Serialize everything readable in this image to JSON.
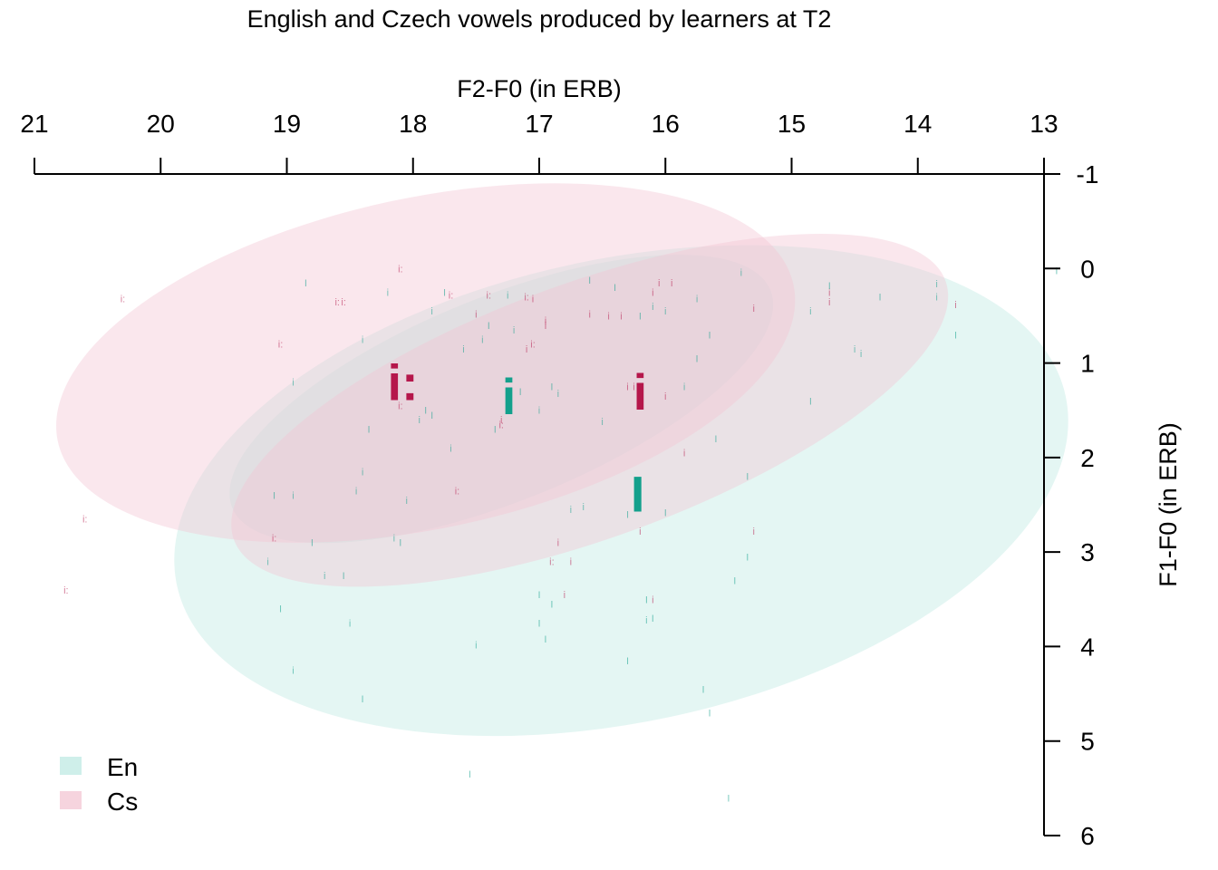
{
  "chart_data": {
    "type": "scatter",
    "title": "English and Czech vowels produced by learners at T2",
    "xlabel": "F2-F0 (in ERB)",
    "ylabel": "F1-F0 (in ERB)",
    "xlim": [
      21,
      13
    ],
    "ylim": [
      -1,
      6
    ],
    "x_ticks": [
      "21",
      "20",
      "19",
      "18",
      "17",
      "16",
      "15",
      "14",
      "13"
    ],
    "y_ticks": [
      "-1",
      "0",
      "1",
      "2",
      "3",
      "4",
      "5",
      "6"
    ],
    "x_axis_position": "top",
    "y_axis_position": "right",
    "x_reversed": true,
    "y_reversed": true,
    "grid": false,
    "legend_position": "bottom-left",
    "colors": {
      "En": "#13a08c",
      "Cs": "#b5174b",
      "En_fill": "#bfe9e3",
      "Cs_fill": "#f3c6d3",
      "overlap_fill": "#c8c6c8"
    },
    "legend": [
      {
        "name": "En",
        "color": "#bfe9e3"
      },
      {
        "name": "Cs",
        "color": "#f3c6d3"
      }
    ],
    "ellipses": [
      {
        "series": "En",
        "vowel": "I",
        "cx": 16.35,
        "cy": 2.35,
        "rx": 3.6,
        "ry": 2.45,
        "angle_deg": -12
      },
      {
        "series": "En",
        "vowel": "i",
        "cx": 17.3,
        "cy": 1.38,
        "rx": 2.3,
        "ry": 1.08,
        "angle_deg": -22
      },
      {
        "series": "Cs",
        "vowel": "i:",
        "cx": 17.9,
        "cy": 1.0,
        "rx": 2.98,
        "ry": 1.75,
        "angle_deg": -12
      },
      {
        "series": "Cs",
        "vowel": "i",
        "cx": 16.6,
        "cy": 1.5,
        "rx": 3.0,
        "ry": 1.35,
        "angle_deg": -20
      }
    ],
    "centroids": [
      {
        "series": "Cs",
        "label": "i:",
        "x": 18.08,
        "y": 1.2
      },
      {
        "series": "En",
        "label": "i",
        "x": 17.24,
        "y": 1.35
      },
      {
        "series": "Cs",
        "label": "i",
        "x": 16.2,
        "y": 1.3
      },
      {
        "series": "En",
        "label": "I",
        "x": 16.22,
        "y": 2.38
      }
    ],
    "points": [
      {
        "series": "En",
        "label": "I",
        "x": 12.9,
        "y": 0.02
      },
      {
        "series": "En",
        "label": "i",
        "x": 13.85,
        "y": 0.16
      },
      {
        "series": "En",
        "label": "i",
        "x": 13.85,
        "y": 0.3
      },
      {
        "series": "En",
        "label": "I",
        "x": 13.7,
        "y": 0.7
      },
      {
        "series": "Cs",
        "label": "i",
        "x": 13.7,
        "y": 0.38
      },
      {
        "series": "En",
        "label": "I",
        "x": 14.3,
        "y": 0.3
      },
      {
        "series": "En",
        "label": "i",
        "x": 14.45,
        "y": 0.9
      },
      {
        "series": "En",
        "label": "i",
        "x": 14.5,
        "y": 0.85
      },
      {
        "series": "Cs",
        "label": "i",
        "x": 14.7,
        "y": 0.25
      },
      {
        "series": "Cs",
        "label": "i",
        "x": 14.7,
        "y": 0.35
      },
      {
        "series": "En",
        "label": "I",
        "x": 14.7,
        "y": 0.18
      },
      {
        "series": "En",
        "label": "I",
        "x": 14.85,
        "y": 1.4
      },
      {
        "series": "En",
        "label": "i",
        "x": 14.85,
        "y": 0.45
      },
      {
        "series": "Cs",
        "label": "i",
        "x": 15.3,
        "y": 0.42
      },
      {
        "series": "En",
        "label": "i",
        "x": 15.4,
        "y": 0.04
      },
      {
        "series": "En",
        "label": "I",
        "x": 15.35,
        "y": 2.2
      },
      {
        "series": "En",
        "label": "I",
        "x": 15.35,
        "y": 3.05
      },
      {
        "series": "En",
        "label": "I",
        "x": 15.45,
        "y": 3.3
      },
      {
        "series": "Cs",
        "label": "i",
        "x": 15.3,
        "y": 2.78
      },
      {
        "series": "En",
        "label": "I",
        "x": 15.6,
        "y": 1.8
      },
      {
        "series": "En",
        "label": "I",
        "x": 15.65,
        "y": 0.7
      },
      {
        "series": "En",
        "label": "I",
        "x": 15.75,
        "y": 0.95
      },
      {
        "series": "En",
        "label": "i",
        "x": 15.75,
        "y": 0.32
      },
      {
        "series": "En",
        "label": "i",
        "x": 15.85,
        "y": 1.25
      },
      {
        "series": "Cs",
        "label": "i",
        "x": 15.85,
        "y": 1.95
      },
      {
        "series": "Cs",
        "label": "i",
        "x": 15.95,
        "y": 0.15
      },
      {
        "series": "Cs",
        "label": "i",
        "x": 16.0,
        "y": 1.35
      },
      {
        "series": "En",
        "label": "i",
        "x": 16.0,
        "y": 0.45
      },
      {
        "series": "En",
        "label": "I",
        "x": 16.0,
        "y": 2.58
      },
      {
        "series": "En",
        "label": "i",
        "x": 16.1,
        "y": 0.4
      },
      {
        "series": "Cs",
        "label": "i",
        "x": 16.05,
        "y": 0.15
      },
      {
        "series": "Cs",
        "label": "i",
        "x": 16.1,
        "y": 0.25
      },
      {
        "series": "En",
        "label": "I",
        "x": 16.2,
        "y": 0.5
      },
      {
        "series": "En",
        "label": "I",
        "x": 16.4,
        "y": 0.2
      },
      {
        "series": "En",
        "label": "I",
        "x": 16.6,
        "y": 0.12
      },
      {
        "series": "Cs",
        "label": "i",
        "x": 16.6,
        "y": 0.48
      },
      {
        "series": "Cs",
        "label": "i",
        "x": 16.45,
        "y": 0.5
      },
      {
        "series": "Cs",
        "label": "i",
        "x": 16.35,
        "y": 0.5
      },
      {
        "series": "En",
        "label": "i",
        "x": 16.5,
        "y": 1.62
      },
      {
        "series": "En",
        "label": "i",
        "x": 16.85,
        "y": 1.32
      },
      {
        "series": "En",
        "label": "I",
        "x": 16.9,
        "y": 1.25
      },
      {
        "series": "En",
        "label": "i",
        "x": 16.65,
        "y": 2.52
      },
      {
        "series": "En",
        "label": "i",
        "x": 16.75,
        "y": 2.55
      },
      {
        "series": "Cs",
        "label": "i",
        "x": 16.25,
        "y": 1.25
      },
      {
        "series": "Cs",
        "label": "i",
        "x": 16.3,
        "y": 1.25
      },
      {
        "series": "Cs",
        "label": "i",
        "x": 16.2,
        "y": 2.78
      },
      {
        "series": "En",
        "label": "I",
        "x": 16.3,
        "y": 2.6
      },
      {
        "series": "Cs",
        "label": "i",
        "x": 16.95,
        "y": 0.55
      },
      {
        "series": "Cs",
        "label": "i",
        "x": 16.95,
        "y": 0.6
      },
      {
        "series": "Cs",
        "label": "i",
        "x": 17.05,
        "y": 0.32
      },
      {
        "series": "Cs",
        "label": "i:",
        "x": 17.1,
        "y": 0.3
      },
      {
        "series": "Cs",
        "label": "i:",
        "x": 17.05,
        "y": 0.8
      },
      {
        "series": "Cs",
        "label": "i",
        "x": 17.1,
        "y": 0.85
      },
      {
        "series": "En",
        "label": "i",
        "x": 17.2,
        "y": 0.65
      },
      {
        "series": "En",
        "label": "i",
        "x": 17.25,
        "y": 0.28
      },
      {
        "series": "En",
        "label": "I",
        "x": 17.4,
        "y": 0.6
      },
      {
        "series": "En",
        "label": "i",
        "x": 17.45,
        "y": 0.75
      },
      {
        "series": "Cs",
        "label": "i:",
        "x": 17.4,
        "y": 0.28
      },
      {
        "series": "Cs",
        "label": "i",
        "x": 17.5,
        "y": 0.48
      },
      {
        "series": "Cs",
        "label": "i:",
        "x": 17.7,
        "y": 0.28
      },
      {
        "series": "Cs",
        "label": "i",
        "x": 17.3,
        "y": 1.6
      },
      {
        "series": "Cs",
        "label": "i:",
        "x": 17.3,
        "y": 1.65
      },
      {
        "series": "En",
        "label": "i",
        "x": 17.0,
        "y": 1.5
      },
      {
        "series": "En",
        "label": "I",
        "x": 17.15,
        "y": 1.3
      },
      {
        "series": "En",
        "label": "I",
        "x": 17.35,
        "y": 1.7
      },
      {
        "series": "En",
        "label": "i",
        "x": 17.6,
        "y": 0.85
      },
      {
        "series": "En",
        "label": "I",
        "x": 17.75,
        "y": 0.25
      },
      {
        "series": "En",
        "label": "i",
        "x": 17.85,
        "y": 0.45
      },
      {
        "series": "Cs",
        "label": "i:",
        "x": 17.65,
        "y": 2.35
      },
      {
        "series": "En",
        "label": "i",
        "x": 17.95,
        "y": 1.6
      },
      {
        "series": "En",
        "label": "I",
        "x": 17.9,
        "y": 1.5
      },
      {
        "series": "En",
        "label": "I",
        "x": 17.85,
        "y": 1.55
      },
      {
        "series": "En",
        "label": "i",
        "x": 17.7,
        "y": 1.9
      },
      {
        "series": "En",
        "label": "i",
        "x": 18.05,
        "y": 2.45
      },
      {
        "series": "En",
        "label": "i",
        "x": 18.2,
        "y": 0.25
      },
      {
        "series": "Cs",
        "label": "i:",
        "x": 18.1,
        "y": 0.0
      },
      {
        "series": "Cs",
        "label": "i:",
        "x": 18.1,
        "y": 1.45
      },
      {
        "series": "Cs",
        "label": "i:",
        "x": 18.55,
        "y": 0.35
      },
      {
        "series": "Cs",
        "label": "i:",
        "x": 18.6,
        "y": 0.35
      },
      {
        "series": "Cs",
        "label": "i:",
        "x": 19.05,
        "y": 0.8
      },
      {
        "series": "Cs",
        "label": "i:",
        "x": 20.3,
        "y": 0.32
      },
      {
        "series": "Cs",
        "label": "i:",
        "x": 20.6,
        "y": 2.65
      },
      {
        "series": "Cs",
        "label": "i:",
        "x": 20.75,
        "y": 3.4
      },
      {
        "series": "Cs",
        "label": "i:",
        "x": 19.1,
        "y": 2.85
      },
      {
        "series": "En",
        "label": "I",
        "x": 18.85,
        "y": 0.15
      },
      {
        "series": "En",
        "label": "i",
        "x": 18.95,
        "y": 1.2
      },
      {
        "series": "En",
        "label": "i",
        "x": 18.4,
        "y": 0.75
      },
      {
        "series": "En",
        "label": "i",
        "x": 18.4,
        "y": 2.15
      },
      {
        "series": "En",
        "label": "i",
        "x": 18.45,
        "y": 2.35
      },
      {
        "series": "En",
        "label": "I",
        "x": 18.35,
        "y": 1.7
      },
      {
        "series": "En",
        "label": "i",
        "x": 18.15,
        "y": 2.85
      },
      {
        "series": "En",
        "label": "I",
        "x": 18.1,
        "y": 2.9
      },
      {
        "series": "En",
        "label": "I",
        "x": 18.8,
        "y": 2.9
      },
      {
        "series": "En",
        "label": "i",
        "x": 18.95,
        "y": 2.4
      },
      {
        "series": "En",
        "label": "I",
        "x": 19.1,
        "y": 2.4
      },
      {
        "series": "En",
        "label": "i",
        "x": 19.15,
        "y": 3.1
      },
      {
        "series": "En",
        "label": "I",
        "x": 19.05,
        "y": 3.6
      },
      {
        "series": "En",
        "label": "i",
        "x": 18.7,
        "y": 3.25
      },
      {
        "series": "En",
        "label": "I",
        "x": 18.55,
        "y": 3.25
      },
      {
        "series": "En",
        "label": "i",
        "x": 18.5,
        "y": 3.75
      },
      {
        "series": "En",
        "label": "i",
        "x": 18.95,
        "y": 4.25
      },
      {
        "series": "En",
        "label": "I",
        "x": 18.4,
        "y": 4.55
      },
      {
        "series": "En",
        "label": "i",
        "x": 17.5,
        "y": 3.98
      },
      {
        "series": "En",
        "label": "I",
        "x": 17.0,
        "y": 3.45
      },
      {
        "series": "En",
        "label": "I",
        "x": 16.9,
        "y": 3.55
      },
      {
        "series": "Cs",
        "label": "i",
        "x": 16.8,
        "y": 3.45
      },
      {
        "series": "En",
        "label": "I",
        "x": 17.0,
        "y": 3.75
      },
      {
        "series": "En",
        "label": "I",
        "x": 16.95,
        "y": 3.92
      },
      {
        "series": "Cs",
        "label": "i:",
        "x": 16.9,
        "y": 3.1
      },
      {
        "series": "Cs",
        "label": "i",
        "x": 16.85,
        "y": 2.9
      },
      {
        "series": "Cs",
        "label": "i",
        "x": 16.75,
        "y": 3.1
      },
      {
        "series": "En",
        "label": "I",
        "x": 16.3,
        "y": 4.15
      },
      {
        "series": "En",
        "label": "I",
        "x": 16.15,
        "y": 3.5
      },
      {
        "series": "Cs",
        "label": "i",
        "x": 16.1,
        "y": 3.5
      },
      {
        "series": "En",
        "label": "i",
        "x": 16.15,
        "y": 3.72
      },
      {
        "series": "En",
        "label": "I",
        "x": 16.1,
        "y": 3.7
      },
      {
        "series": "En",
        "label": "I",
        "x": 15.7,
        "y": 4.45
      },
      {
        "series": "En",
        "label": "I",
        "x": 15.65,
        "y": 4.7
      },
      {
        "series": "En",
        "label": "I",
        "x": 17.55,
        "y": 5.35
      },
      {
        "series": "En",
        "label": "I",
        "x": 15.5,
        "y": 5.6
      }
    ]
  }
}
